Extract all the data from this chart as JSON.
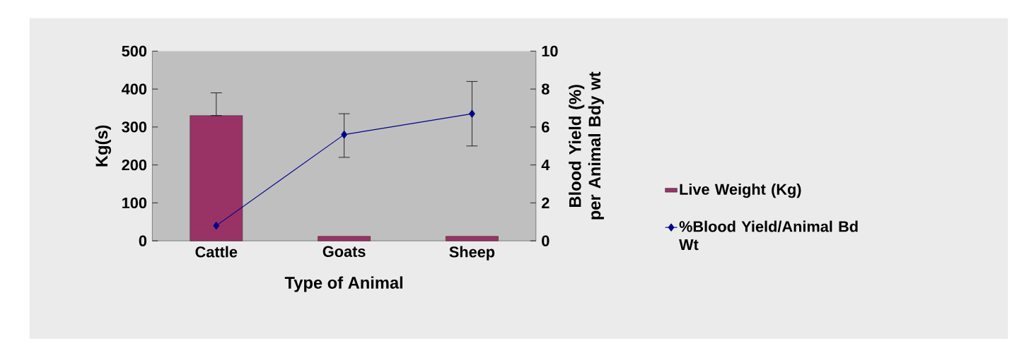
{
  "chart_data": {
    "type": "bar",
    "xlabel": "Type of Animal",
    "ylabel": "Kg(s)",
    "y2label": "Blood Yield (%) per Animal Bdy wt",
    "categories": [
      "Cattle",
      "Goats",
      "Sheep"
    ],
    "series": [
      {
        "name": "Live Weight (Kg)",
        "color": "#993366",
        "values": [
          330,
          12,
          12
        ],
        "errors": [
          [
            330,
            390
          ],
          null,
          null
        ]
      },
      {
        "name": "%Blood Yield/Animal Bd Wt",
        "type": "line",
        "axis": "y2",
        "color": "#00008b",
        "values": [
          0.8,
          5.6,
          6.7
        ],
        "errors": [
          null,
          [
            4.4,
            6.7
          ],
          [
            5.0,
            8.4
          ]
        ]
      }
    ],
    "ylim": [
      0,
      500
    ],
    "yticks": [
      0,
      100,
      200,
      300,
      400,
      500
    ],
    "y2lim": [
      0,
      10
    ],
    "y2ticks": [
      0,
      2,
      4,
      6,
      8,
      10
    ],
    "marker": "diamond",
    "line_style": "solid",
    "legend": "right",
    "grid": false
  }
}
